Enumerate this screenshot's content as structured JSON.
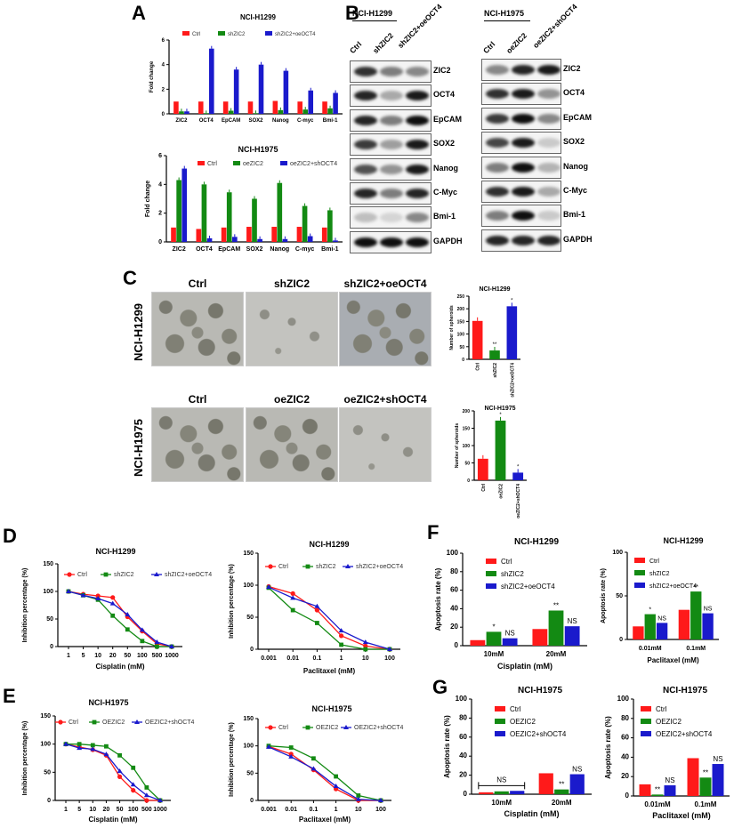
{
  "panel_labels": [
    "A",
    "B",
    "C",
    "D",
    "E",
    "F",
    "G"
  ],
  "colors": {
    "ctrl": "#ff1a1a",
    "treat": "#138a13",
    "combo": "#1a1acc"
  },
  "blots": [
    {
      "title": "NCI-H1299",
      "lanes": [
        "Ctrl",
        "shZIC2",
        "shZIC2+oeOCT4"
      ],
      "rows": [
        {
          "label": "ZIC2",
          "bands": [
            0.85,
            0.5,
            0.45
          ]
        },
        {
          "label": "OCT4",
          "bands": [
            0.9,
            0.3,
            0.95
          ]
        },
        {
          "label": "EpCAM",
          "bands": [
            0.9,
            0.5,
            1
          ]
        },
        {
          "label": "SOX2",
          "bands": [
            0.8,
            0.35,
            0.95
          ]
        },
        {
          "label": "Nanog",
          "bands": [
            0.7,
            0.4,
            0.95
          ]
        },
        {
          "label": "C-Myc",
          "bands": [
            0.9,
            0.5,
            0.9
          ]
        },
        {
          "label": "Bmi-1",
          "bands": [
            0.2,
            0.1,
            0.45
          ]
        },
        {
          "label": "GAPDH",
          "bands": [
            1,
            1,
            1
          ]
        }
      ]
    },
    {
      "title": "NCI-H1975",
      "lanes": [
        "Ctrl",
        "oeZIC2",
        "oeZIC2+shOCT4"
      ],
      "rows": [
        {
          "label": "ZIC2",
          "bands": [
            0.45,
            0.9,
            0.95
          ]
        },
        {
          "label": "OCT4",
          "bands": [
            0.85,
            0.95,
            0.4
          ]
        },
        {
          "label": "EpCAM",
          "bands": [
            0.8,
            1,
            0.45
          ]
        },
        {
          "label": "SOX2",
          "bands": [
            0.75,
            0.95,
            0.15
          ]
        },
        {
          "label": "Nanog",
          "bands": [
            0.5,
            1,
            0.25
          ]
        },
        {
          "label": "C-Myc",
          "bands": [
            0.85,
            0.95,
            0.3
          ]
        },
        {
          "label": "Bmi-1",
          "bands": [
            0.5,
            1,
            0.15
          ]
        },
        {
          "label": "GAPDH",
          "bands": [
            0.9,
            0.9,
            0.9
          ]
        }
      ]
    }
  ],
  "spheroid_images": {
    "rows": [
      {
        "cell_line": "NCI-H1299",
        "titles": [
          "Ctrl",
          "shZIC2",
          "shZIC2+oeOCT4"
        ]
      },
      {
        "cell_line": "NCI-H1975",
        "titles": [
          "Ctrl",
          "oeZIC2",
          "oeZIC2+shOCT4"
        ]
      }
    ]
  },
  "chart_data": [
    {
      "id": "A1",
      "type": "bar",
      "title": "NCI-H1299",
      "ylabel": "Fold change",
      "ylim": [
        0,
        6
      ],
      "yticks": [
        0,
        2,
        4,
        6
      ],
      "legend": "top",
      "categories": [
        "ZIC2",
        "OCT4",
        "EpCAM",
        "SOX2",
        "Nanog",
        "C-myc",
        "Bmi-1"
      ],
      "series": [
        {
          "name": "Ctrl",
          "values": [
            1,
            1,
            1,
            1,
            1.05,
            1,
            1
          ]
        },
        {
          "name": "shZIC2",
          "values": [
            0.2,
            0.05,
            0.25,
            0.05,
            0.3,
            0.35,
            0.45
          ]
        },
        {
          "name": "shZIC2+oeOCT4",
          "values": [
            0.2,
            5.3,
            3.6,
            4.0,
            3.5,
            1.9,
            1.7
          ]
        }
      ]
    },
    {
      "id": "A2",
      "type": "bar",
      "title": "NCI-H1975",
      "ylabel": "Fold change",
      "ylim": [
        0,
        6
      ],
      "yticks": [
        0,
        2,
        4,
        6
      ],
      "legend": "top",
      "categories": [
        "ZIC2",
        "OCT4",
        "EpCAM",
        "SOX2",
        "Nanog",
        "C-myc",
        "Bmi-1"
      ],
      "series": [
        {
          "name": "Ctrl",
          "values": [
            1,
            0.9,
            1,
            1.05,
            1.05,
            1.05,
            1
          ]
        },
        {
          "name": "oeZIC2",
          "values": [
            4.3,
            4.0,
            3.45,
            3.0,
            4.1,
            2.5,
            2.2
          ]
        },
        {
          "name": "oeZIC2+shOCT4",
          "values": [
            5.1,
            0.25,
            0.35,
            0.2,
            0.2,
            0.4,
            0.1
          ]
        }
      ]
    },
    {
      "id": "C1",
      "type": "bar",
      "title": "NCI-H1299",
      "ylabel": "Number of spheroids",
      "ylim": [
        0,
        250
      ],
      "yticks": [
        0,
        50,
        100,
        150,
        200,
        250
      ],
      "categories": [
        "Ctrl",
        "shZIC2",
        "shZIC2+oeOCT4"
      ],
      "values": [
        152,
        35,
        210
      ],
      "annotations": [
        "",
        "**",
        "*"
      ]
    },
    {
      "id": "C2",
      "type": "bar",
      "title": "NCI-H1975",
      "ylabel": "Number of spheroids",
      "ylim": [
        0,
        200
      ],
      "yticks": [
        0,
        50,
        100,
        150,
        200
      ],
      "categories": [
        "Ctrl",
        "oeZIC2",
        "oeZIC2+shOCT4"
      ],
      "values": [
        62,
        172,
        22
      ],
      "annotations": [
        "",
        "*",
        "*"
      ]
    },
    {
      "id": "D1",
      "type": "line",
      "title": "NCI-H1299",
      "xlabel": "Cisplatin (mM)",
      "ylabel": "Inhibition percentage (%)",
      "ylim": [
        0,
        150
      ],
      "yticks": [
        0,
        50,
        100,
        150
      ],
      "legend": "top",
      "x": [
        "1",
        "5",
        "10",
        "20",
        "50",
        "100",
        "500",
        "1000"
      ],
      "series": [
        {
          "name": "Ctrl",
          "marker": "circle",
          "values": [
            100,
            95,
            92,
            89,
            54,
            28,
            5,
            0
          ]
        },
        {
          "name": "shZIC2",
          "marker": "square",
          "values": [
            100,
            93,
            85,
            56,
            31,
            10,
            0,
            0
          ]
        },
        {
          "name": "shZIC2+oeOCT4",
          "marker": "triangle",
          "values": [
            100,
            93,
            87,
            78,
            58,
            30,
            8,
            0
          ]
        }
      ]
    },
    {
      "id": "D2",
      "type": "line",
      "title": "NCI-H1299",
      "xlabel": "Paclitaxel (mM)",
      "ylabel": "Inhibition percentage (%)",
      "ylim": [
        0,
        150
      ],
      "yticks": [
        0,
        50,
        100,
        150
      ],
      "legend": "top",
      "x": [
        "0.001",
        "0.01",
        "0.1",
        "1",
        "10",
        "100"
      ],
      "series": [
        {
          "name": "Ctrl",
          "marker": "circle",
          "values": [
            98,
            87,
            61,
            21,
            5,
            0
          ]
        },
        {
          "name": "shZIC2",
          "marker": "square",
          "values": [
            96,
            61,
            41,
            7,
            0,
            0
          ]
        },
        {
          "name": "shZIC2+oeOCT4",
          "marker": "triangle",
          "values": [
            97,
            80,
            67,
            29,
            11,
            0
          ]
        }
      ]
    },
    {
      "id": "E1",
      "type": "line",
      "title": "NCI-H1975",
      "xlabel": "Cisplatin (mM)",
      "ylabel": "Inhibition percentage (%)",
      "ylim": [
        0,
        150
      ],
      "yticks": [
        0,
        50,
        100,
        150
      ],
      "legend": "top",
      "x": [
        "1",
        "5",
        "10",
        "20",
        "50",
        "100",
        "500",
        "1000"
      ],
      "series": [
        {
          "name": "Ctrl",
          "marker": "circle",
          "values": [
            100,
            95,
            90,
            80,
            42,
            18,
            0,
            0
          ]
        },
        {
          "name": "OEZIC2",
          "marker": "square",
          "values": [
            100,
            100,
            98,
            96,
            80,
            58,
            23,
            0
          ]
        },
        {
          "name": "OEZIC2+shOCT4",
          "marker": "triangle",
          "values": [
            100,
            93,
            91,
            82,
            52,
            28,
            9,
            0
          ]
        }
      ]
    },
    {
      "id": "E2",
      "type": "line",
      "title": "NCI-H1975",
      "xlabel": "Paclitaxel (mM)",
      "ylabel": "Inhibition percentage (%)",
      "ylim": [
        0,
        150
      ],
      "yticks": [
        0,
        50,
        100,
        150
      ],
      "legend": "top",
      "x": [
        "0.001",
        "0.01",
        "0.1",
        "1",
        "10",
        "100"
      ],
      "series": [
        {
          "name": "Ctrl",
          "marker": "circle",
          "values": [
            99,
            85,
            56,
            21,
            0,
            0
          ]
        },
        {
          "name": "OEZIC2",
          "marker": "square",
          "values": [
            100,
            97,
            77,
            44,
            9,
            0
          ]
        },
        {
          "name": "OEZIC2+shOCT4",
          "marker": "triangle",
          "values": [
            98,
            80,
            58,
            26,
            2,
            0
          ]
        }
      ]
    },
    {
      "id": "F1",
      "type": "bar",
      "title": "NCI-H1299",
      "xlabel": "Cisplatin (mM)",
      "ylabel": "Apoptosis rate (%)",
      "ylim": [
        0,
        100
      ],
      "yticks": [
        0,
        20,
        40,
        60,
        80,
        100
      ],
      "legend": "top-left",
      "categories": [
        "10mM",
        "20mM"
      ],
      "series": [
        {
          "name": "Ctrl",
          "values": [
            6,
            18
          ]
        },
        {
          "name": "shZIC2",
          "values": [
            15,
            38
          ]
        },
        {
          "name": "shZIC2+oeOCT4",
          "values": [
            8,
            21
          ]
        }
      ],
      "annotations": [
        [
          "",
          "*",
          "NS"
        ],
        [
          "",
          "**",
          "NS"
        ]
      ]
    },
    {
      "id": "F2",
      "type": "bar",
      "title": "NCI-H1299",
      "xlabel": "Paclitaxel (mM)",
      "ylabel": "Apoptosis rate (%)",
      "ylim": [
        0,
        100
      ],
      "yticks": [
        0,
        50,
        100
      ],
      "legend": "top-left",
      "categories": [
        "0.01mM",
        "0.1mM"
      ],
      "series": [
        {
          "name": "Ctrl",
          "values": [
            15,
            34
          ]
        },
        {
          "name": "shZIC2",
          "values": [
            29,
            55
          ]
        },
        {
          "name": "shZIC2+oeOCT4",
          "values": [
            19,
            30
          ]
        }
      ],
      "annotations": [
        [
          "",
          "*",
          "NS"
        ],
        [
          "",
          "**",
          "NS"
        ]
      ]
    },
    {
      "id": "G1",
      "type": "bar",
      "title": "NCI-H1975",
      "xlabel": "Cisplatin (mM)",
      "ylabel": "Apoptosis rate (%)",
      "ylim": [
        0,
        100
      ],
      "yticks": [
        0,
        20,
        40,
        60,
        80,
        100
      ],
      "legend": "top-left",
      "categories": [
        "10mM",
        "20mM"
      ],
      "series": [
        {
          "name": "Ctrl",
          "values": [
            2,
            22
          ]
        },
        {
          "name": "OEZIC2",
          "values": [
            3,
            5
          ]
        },
        {
          "name": "OEZIC2+shOCT4",
          "values": [
            3.5,
            21
          ]
        }
      ],
      "annotations": [
        [
          "",
          "",
          ""
        ],
        [
          "",
          "**",
          "NS"
        ]
      ],
      "bracket_label": "NS"
    },
    {
      "id": "G2",
      "type": "bar",
      "title": "NCI-H1975",
      "xlabel": "Paclitaxel (mM)",
      "ylabel": "Apoptosis rate (%)",
      "ylim": [
        0,
        100
      ],
      "yticks": [
        0,
        20,
        40,
        60,
        80,
        100
      ],
      "legend": "top-left",
      "categories": [
        "0.01mM",
        "0.1mM"
      ],
      "series": [
        {
          "name": "Ctrl",
          "values": [
            12,
            39
          ]
        },
        {
          "name": "OEZIC2",
          "values": [
            1.5,
            19
          ]
        },
        {
          "name": "OEZIC2+shOCT4",
          "values": [
            11,
            33
          ]
        }
      ],
      "annotations": [
        [
          "",
          "**",
          "NS"
        ],
        [
          "",
          "**",
          "NS"
        ]
      ]
    }
  ]
}
